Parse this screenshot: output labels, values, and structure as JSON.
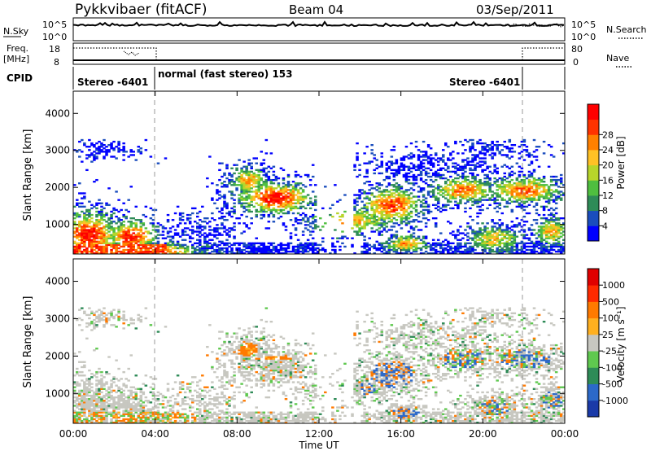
{
  "header": {
    "station": "Pykkvibaer (fitACF)",
    "beam": "Beam 04",
    "date": "03/Sep/2011"
  },
  "top_panels": {
    "nsky_label": "N.Sky",
    "nsearch_label": "N.Search",
    "nsky_ticks": [
      "10^5",
      "10^0"
    ],
    "nsearch_ticks": [
      "10^5",
      "10^0"
    ],
    "freq_label_line1": "Freq.",
    "freq_label_line2": "[MHz]",
    "freq_ticks": [
      "18",
      "8"
    ],
    "nave_label": "Nave",
    "nave_ticks": [
      "80",
      "0"
    ],
    "cpid_label": "CPID",
    "cpid_segments": [
      {
        "text": "Stereo -6401"
      },
      {
        "text": "normal (fast stereo) 153"
      },
      {
        "text": "Stereo -6401"
      }
    ]
  },
  "chart_data": [
    {
      "type": "heatmap",
      "name": "power",
      "ylabel": "Slant Range [km]",
      "yticks": [
        "1000",
        "2000",
        "3000",
        "4000"
      ],
      "ylim": [
        200,
        4600
      ],
      "xlabel": "Time UT",
      "xticks": [
        "00:00",
        "04:00",
        "08:00",
        "12:00",
        "16:00",
        "20:00",
        "00:00"
      ],
      "xlim_hours": [
        0,
        24
      ],
      "colorbar_label": "Power [dB]",
      "colorbar_ticks": [
        "4",
        "8",
        "12",
        "16",
        "20",
        "24",
        "28"
      ],
      "colorbar_colors": [
        "#0000ff",
        "#1a4dbd",
        "#2e8b57",
        "#4fbf3f",
        "#b7d52a",
        "#ffc125",
        "#ff8000",
        "#ff3300",
        "#ff0000"
      ]
    },
    {
      "type": "heatmap",
      "name": "velocity",
      "ylabel": "Slant Range [km]",
      "yticks": [
        "1000",
        "2000",
        "3000",
        "4000"
      ],
      "ylim": [
        200,
        4600
      ],
      "xlabel": "Time UT",
      "xticks": [
        "00:00",
        "04:00",
        "08:00",
        "12:00",
        "16:00",
        "20:00",
        "00:00"
      ],
      "xlim_hours": [
        0,
        24
      ],
      "colorbar_label": "Velocity [m s⁻¹]",
      "colorbar_ticks": [
        "1000",
        "500",
        "100",
        "25",
        "-25",
        "-100",
        "-500",
        "-1000"
      ],
      "colorbar_colors": [
        "#1a3aa8",
        "#2c69c9",
        "#2e8b57",
        "#5fc84f",
        "#c7c7c0",
        "#ffb020",
        "#ff7a00",
        "#ff2a00",
        "#e00000"
      ]
    }
  ]
}
